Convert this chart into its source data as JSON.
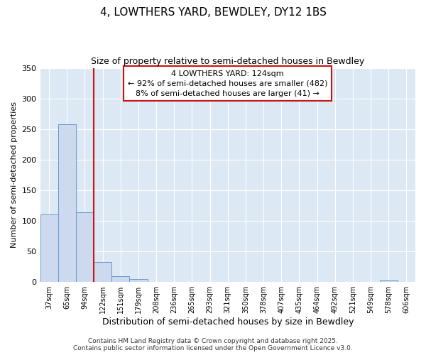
{
  "title": "4, LOWTHERS YARD, BEWDLEY, DY12 1BS",
  "subtitle": "Size of property relative to semi-detached houses in Bewdley",
  "xlabel": "Distribution of semi-detached houses by size in Bewdley",
  "ylabel": "Number of semi-detached properties",
  "bins": [
    "37sqm",
    "65sqm",
    "94sqm",
    "122sqm",
    "151sqm",
    "179sqm",
    "208sqm",
    "236sqm",
    "265sqm",
    "293sqm",
    "321sqm",
    "350sqm",
    "378sqm",
    "407sqm",
    "435sqm",
    "464sqm",
    "492sqm",
    "521sqm",
    "549sqm",
    "578sqm",
    "606sqm"
  ],
  "values": [
    110,
    258,
    114,
    33,
    10,
    5,
    0,
    0,
    0,
    0,
    0,
    0,
    0,
    0,
    0,
    0,
    0,
    0,
    0,
    2,
    0
  ],
  "property_bin_index": 3,
  "annotation_title": "4 LOWTHERS YARD: 124sqm",
  "annotation_line1": "← 92% of semi-detached houses are smaller (482)",
  "annotation_line2": "8% of semi-detached houses are larger (41) →",
  "bar_color": "#ccd9ef",
  "bar_edge_color": "#6699cc",
  "vline_color": "#cc1111",
  "annotation_box_edge": "#cc1111",
  "background_color": "#dde8f5",
  "grid_color": "#ffffff",
  "footer": "Contains HM Land Registry data © Crown copyright and database right 2025.\nContains public sector information licensed under the Open Government Licence v3.0.",
  "ylim": [
    0,
    350
  ],
  "yticks": [
    0,
    50,
    100,
    150,
    200,
    250,
    300,
    350
  ]
}
